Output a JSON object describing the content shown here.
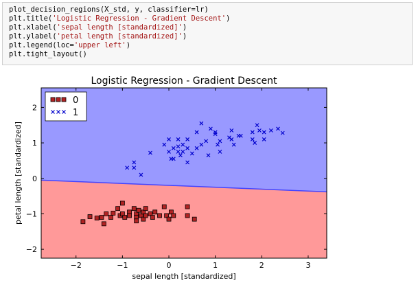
{
  "code": {
    "lines": [
      {
        "text": "plot_decision_regions(X_std, y, classifier=lr)",
        "segments": []
      },
      {
        "prefix": "plt.title(",
        "string": "'Logistic Regression - Gradient Descent'",
        "suffix": ")"
      },
      {
        "prefix": "plt.xlabel(",
        "string": "'sepal length [standardized]'",
        "suffix": ")"
      },
      {
        "prefix": "plt.ylabel(",
        "string": "'petal length [standardized]'",
        "suffix": ")"
      },
      {
        "prefix": "plt.legend(loc=",
        "string": "'upper left'",
        "suffix": ")"
      },
      {
        "text": "plt.tight_layout()"
      }
    ]
  },
  "chart_data": {
    "type": "scatter",
    "title": "Logistic Regression - Gradient Descent",
    "xlabel": "sepal length [standardized]",
    "ylabel": "petal length [standardized]",
    "xlim": [
      -2.75,
      3.4
    ],
    "ylim": [
      -2.25,
      2.55
    ],
    "xticks": [
      -2,
      -1,
      0,
      1,
      2,
      3
    ],
    "yticks": [
      -2,
      -1,
      0,
      1,
      2
    ],
    "decision_boundary": {
      "x": [
        -2.75,
        3.4
      ],
      "y": [
        -0.05,
        -0.38
      ]
    },
    "region_colors": {
      "class_0": "#ff9999",
      "class_1": "#9999ff"
    },
    "legend_position": "upper left",
    "series": [
      {
        "name": "0",
        "marker": "square",
        "color": "#b22222",
        "points": [
          [
            -1.85,
            -1.22
          ],
          [
            -1.7,
            -1.08
          ],
          [
            -1.55,
            -1.12
          ],
          [
            -1.45,
            -1.1
          ],
          [
            -1.4,
            -1.28
          ],
          [
            -1.35,
            -1.0
          ],
          [
            -1.25,
            -1.1
          ],
          [
            -1.2,
            -0.98
          ],
          [
            -1.1,
            -0.85
          ],
          [
            -1.05,
            -1.05
          ],
          [
            -1.0,
            -0.7
          ],
          [
            -1.0,
            -1.0
          ],
          [
            -0.95,
            -1.1
          ],
          [
            -0.85,
            -0.95
          ],
          [
            -0.85,
            -1.05
          ],
          [
            -0.75,
            -0.85
          ],
          [
            -0.7,
            -1.0
          ],
          [
            -0.7,
            -1.1
          ],
          [
            -0.7,
            -1.2
          ],
          [
            -0.65,
            -0.9
          ],
          [
            -0.6,
            -1.05
          ],
          [
            -0.55,
            -0.95
          ],
          [
            -0.55,
            -1.15
          ],
          [
            -0.5,
            -0.85
          ],
          [
            -0.5,
            -1.05
          ],
          [
            -0.4,
            -1.0
          ],
          [
            -0.35,
            -1.1
          ],
          [
            -0.3,
            -0.95
          ],
          [
            -0.2,
            -1.05
          ],
          [
            -0.1,
            -0.8
          ],
          [
            -0.05,
            -1.05
          ],
          [
            0.0,
            -1.15
          ],
          [
            0.05,
            -0.95
          ],
          [
            0.1,
            -1.05
          ],
          [
            0.4,
            -0.8
          ],
          [
            0.4,
            -1.05
          ],
          [
            0.55,
            -1.15
          ]
        ]
      },
      {
        "name": "1",
        "marker": "x",
        "color": "#0000cc",
        "points": [
          [
            -0.9,
            0.3
          ],
          [
            -0.75,
            0.45
          ],
          [
            -0.75,
            0.3
          ],
          [
            -0.6,
            0.1
          ],
          [
            -0.4,
            0.72
          ],
          [
            -0.1,
            0.95
          ],
          [
            0.0,
            1.1
          ],
          [
            0.0,
            0.75
          ],
          [
            0.05,
            0.55
          ],
          [
            0.1,
            0.85
          ],
          [
            0.1,
            0.55
          ],
          [
            0.2,
            1.1
          ],
          [
            0.2,
            0.9
          ],
          [
            0.2,
            0.75
          ],
          [
            0.25,
            0.65
          ],
          [
            0.3,
            0.95
          ],
          [
            0.3,
            0.75
          ],
          [
            0.4,
            1.1
          ],
          [
            0.4,
            0.85
          ],
          [
            0.4,
            0.45
          ],
          [
            0.5,
            0.7
          ],
          [
            0.6,
            0.85
          ],
          [
            0.6,
            1.3
          ],
          [
            0.7,
            1.55
          ],
          [
            0.7,
            0.95
          ],
          [
            0.8,
            1.05
          ],
          [
            0.85,
            0.65
          ],
          [
            0.9,
            1.4
          ],
          [
            1.0,
            1.25
          ],
          [
            1.0,
            1.3
          ],
          [
            1.05,
            0.95
          ],
          [
            1.1,
            1.05
          ],
          [
            1.1,
            0.75
          ],
          [
            1.3,
            1.15
          ],
          [
            1.35,
            1.35
          ],
          [
            1.35,
            1.1
          ],
          [
            1.4,
            0.95
          ],
          [
            1.5,
            1.2
          ],
          [
            1.55,
            1.2
          ],
          [
            1.8,
            1.3
          ],
          [
            1.8,
            1.1
          ],
          [
            1.85,
            1.0
          ],
          [
            1.9,
            1.5
          ],
          [
            1.95,
            1.35
          ],
          [
            2.05,
            1.3
          ],
          [
            2.05,
            1.1
          ],
          [
            2.2,
            1.35
          ],
          [
            2.35,
            1.4
          ],
          [
            2.45,
            1.28
          ]
        ]
      }
    ]
  },
  "colors": {
    "square_fill": "#b22222",
    "x_color": "#0000cc",
    "edge": "#000000"
  }
}
